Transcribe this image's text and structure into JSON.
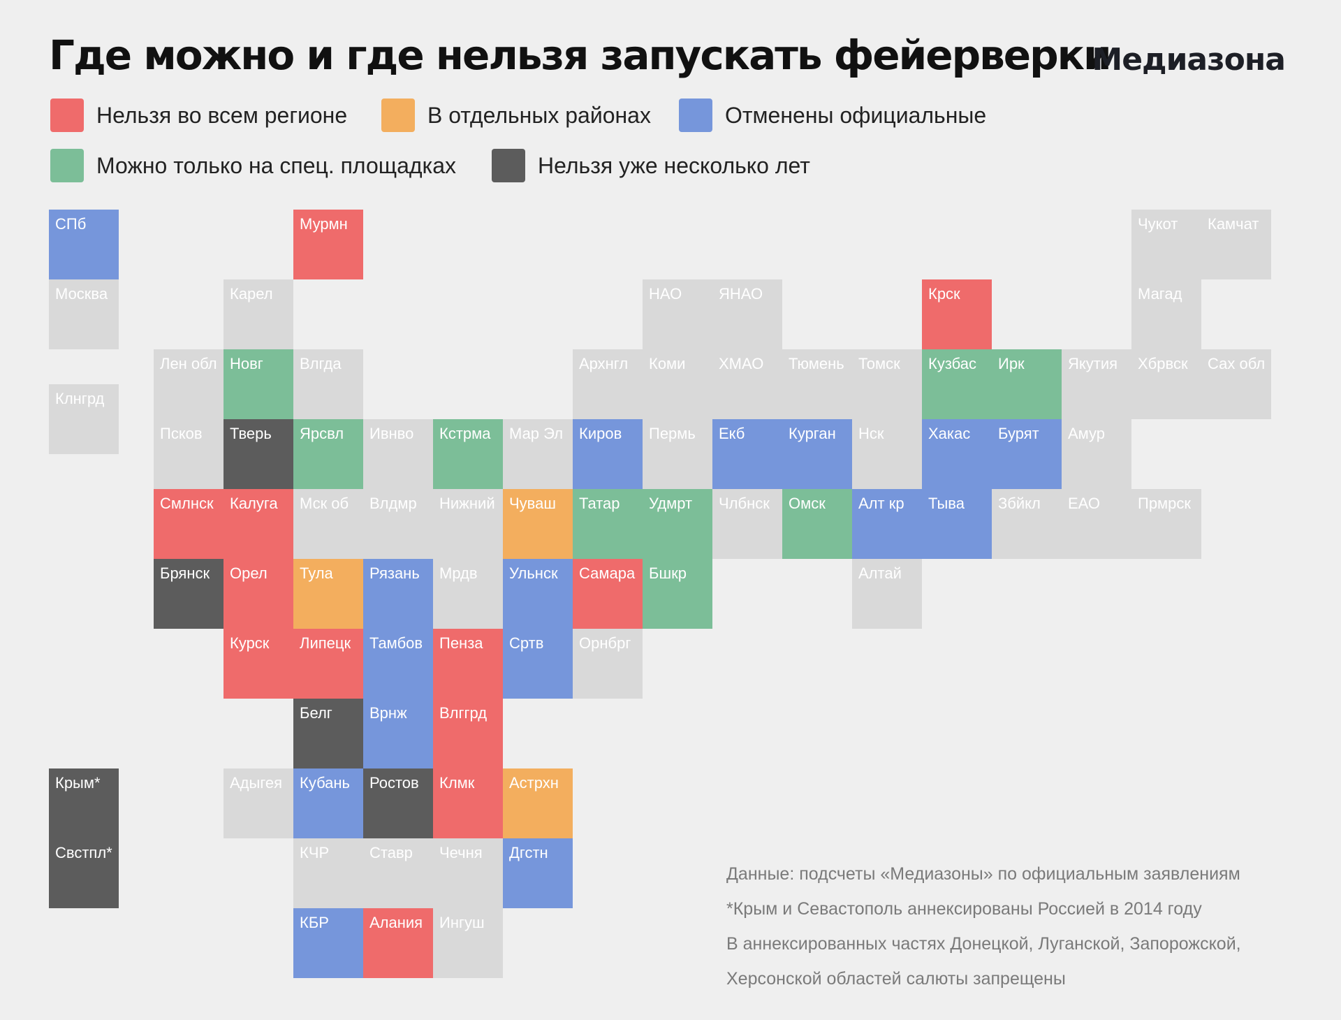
{
  "title": "Где можно и где нельзя запускать фейерверки",
  "logo": "Медиазона",
  "colors": {
    "red": "#ef6b6b",
    "orange": "#f3ae5e",
    "blue": "#7696db",
    "green": "#7cbe98",
    "dark": "#5c5c5c",
    "gray": "#d9d9d9"
  },
  "legend": [
    {
      "label": "Нельзя во всем регионе",
      "status": "red"
    },
    {
      "label": "В отдельных районах",
      "status": "orange"
    },
    {
      "label": "Отменены официальные",
      "status": "blue"
    },
    {
      "label": "Можно только на спец. площадках",
      "status": "green"
    },
    {
      "label": "Нельзя уже несколько лет",
      "status": "dark"
    }
  ],
  "regions": [
    {
      "label": "СПб",
      "col": 0,
      "row": 0,
      "status": "blue"
    },
    {
      "label": "Мурмн",
      "col": 3.5,
      "row": 0,
      "status": "red"
    },
    {
      "label": "Чукот",
      "col": 15.5,
      "row": 0,
      "status": "gray"
    },
    {
      "label": "Камчат",
      "col": 16.5,
      "row": 0,
      "status": "gray"
    },
    {
      "label": "Москва",
      "col": 0,
      "row": 1,
      "status": "gray"
    },
    {
      "label": "Карел",
      "col": 2.5,
      "row": 1,
      "status": "gray"
    },
    {
      "label": "НАО",
      "col": 8.5,
      "row": 1,
      "status": "gray"
    },
    {
      "label": "ЯНАО",
      "col": 9.5,
      "row": 1,
      "status": "gray"
    },
    {
      "label": "Крск",
      "col": 12.5,
      "row": 1,
      "status": "red"
    },
    {
      "label": "Магад",
      "col": 15.5,
      "row": 1,
      "status": "gray"
    },
    {
      "label": "Лен обл",
      "col": 1.5,
      "row": 2,
      "status": "gray"
    },
    {
      "label": "Новг",
      "col": 2.5,
      "row": 2,
      "status": "green"
    },
    {
      "label": "Влгда",
      "col": 3.5,
      "row": 2,
      "status": "gray"
    },
    {
      "label": "Архнгл",
      "col": 7.5,
      "row": 2,
      "status": "gray"
    },
    {
      "label": "Коми",
      "col": 8.5,
      "row": 2,
      "status": "gray"
    },
    {
      "label": "ХМАО",
      "col": 9.5,
      "row": 2,
      "status": "gray"
    },
    {
      "label": "Тюмень",
      "col": 10.5,
      "row": 2,
      "status": "gray"
    },
    {
      "label": "Томск",
      "col": 11.5,
      "row": 2,
      "status": "gray"
    },
    {
      "label": "Кузбас",
      "col": 12.5,
      "row": 2,
      "status": "green"
    },
    {
      "label": "Ирк",
      "col": 13.5,
      "row": 2,
      "status": "green"
    },
    {
      "label": "Якутия",
      "col": 14.5,
      "row": 2,
      "status": "gray"
    },
    {
      "label": "Хбрвск",
      "col": 15.5,
      "row": 2,
      "status": "gray"
    },
    {
      "label": "Сах обл",
      "col": 16.5,
      "row": 2,
      "status": "gray"
    },
    {
      "label": "Клнгрд",
      "col": 0,
      "row": 2.5,
      "status": "gray"
    },
    {
      "label": "Псков",
      "col": 1.5,
      "row": 3,
      "status": "gray"
    },
    {
      "label": "Тверь",
      "col": 2.5,
      "row": 3,
      "status": "dark"
    },
    {
      "label": "Ярсвл",
      "col": 3.5,
      "row": 3,
      "status": "green"
    },
    {
      "label": "Ивнво",
      "col": 4.5,
      "row": 3,
      "status": "gray"
    },
    {
      "label": "Кстрма",
      "col": 5.5,
      "row": 3,
      "status": "green"
    },
    {
      "label": "Мар Эл",
      "col": 6.5,
      "row": 3,
      "status": "gray"
    },
    {
      "label": "Киров",
      "col": 7.5,
      "row": 3,
      "status": "blue"
    },
    {
      "label": "Пермь",
      "col": 8.5,
      "row": 3,
      "status": "gray"
    },
    {
      "label": "Екб",
      "col": 9.5,
      "row": 3,
      "status": "blue"
    },
    {
      "label": "Курган",
      "col": 10.5,
      "row": 3,
      "status": "blue"
    },
    {
      "label": "Нск",
      "col": 11.5,
      "row": 3,
      "status": "gray"
    },
    {
      "label": "Хакас",
      "col": 12.5,
      "row": 3,
      "status": "blue"
    },
    {
      "label": "Бурят",
      "col": 13.5,
      "row": 3,
      "status": "blue"
    },
    {
      "label": "Амур",
      "col": 14.5,
      "row": 3,
      "status": "gray"
    },
    {
      "label": "Смлнск",
      "col": 1.5,
      "row": 4,
      "status": "red"
    },
    {
      "label": "Калуга",
      "col": 2.5,
      "row": 4,
      "status": "red"
    },
    {
      "label": "Мск об",
      "col": 3.5,
      "row": 4,
      "status": "gray"
    },
    {
      "label": "Влдмр",
      "col": 4.5,
      "row": 4,
      "status": "gray"
    },
    {
      "label": "Нижний",
      "col": 5.5,
      "row": 4,
      "status": "gray"
    },
    {
      "label": "Чуваш",
      "col": 6.5,
      "row": 4,
      "status": "orange"
    },
    {
      "label": "Татар",
      "col": 7.5,
      "row": 4,
      "status": "green"
    },
    {
      "label": "Удмрт",
      "col": 8.5,
      "row": 4,
      "status": "green"
    },
    {
      "label": "Члбнск",
      "col": 9.5,
      "row": 4,
      "status": "gray"
    },
    {
      "label": "Омск",
      "col": 10.5,
      "row": 4,
      "status": "green"
    },
    {
      "label": "Алт кр",
      "col": 11.5,
      "row": 4,
      "status": "blue"
    },
    {
      "label": "Тыва",
      "col": 12.5,
      "row": 4,
      "status": "blue"
    },
    {
      "label": "Збйкл",
      "col": 13.5,
      "row": 4,
      "status": "gray"
    },
    {
      "label": "ЕАО",
      "col": 14.5,
      "row": 4,
      "status": "gray"
    },
    {
      "label": "Прмрск",
      "col": 15.5,
      "row": 4,
      "status": "gray"
    },
    {
      "label": "Брянск",
      "col": 1.5,
      "row": 5,
      "status": "dark"
    },
    {
      "label": "Орел",
      "col": 2.5,
      "row": 5,
      "status": "red"
    },
    {
      "label": "Тула",
      "col": 3.5,
      "row": 5,
      "status": "orange"
    },
    {
      "label": "Рязань",
      "col": 4.5,
      "row": 5,
      "status": "blue"
    },
    {
      "label": "Мрдв",
      "col": 5.5,
      "row": 5,
      "status": "gray"
    },
    {
      "label": "Ульнск",
      "col": 6.5,
      "row": 5,
      "status": "blue"
    },
    {
      "label": "Самара",
      "col": 7.5,
      "row": 5,
      "status": "red"
    },
    {
      "label": "Бшкр",
      "col": 8.5,
      "row": 5,
      "status": "green"
    },
    {
      "label": "Алтай",
      "col": 11.5,
      "row": 5,
      "status": "gray"
    },
    {
      "label": "Курск",
      "col": 2.5,
      "row": 6,
      "status": "red"
    },
    {
      "label": "Липецк",
      "col": 3.5,
      "row": 6,
      "status": "red"
    },
    {
      "label": "Тамбов",
      "col": 4.5,
      "row": 6,
      "status": "blue"
    },
    {
      "label": "Пенза",
      "col": 5.5,
      "row": 6,
      "status": "red"
    },
    {
      "label": "Сртв",
      "col": 6.5,
      "row": 6,
      "status": "blue"
    },
    {
      "label": "Орнбрг",
      "col": 7.5,
      "row": 6,
      "status": "gray"
    },
    {
      "label": "Белг",
      "col": 3.5,
      "row": 7,
      "status": "dark"
    },
    {
      "label": "Врнж",
      "col": 4.5,
      "row": 7,
      "status": "blue"
    },
    {
      "label": "Влггрд",
      "col": 5.5,
      "row": 7,
      "status": "red"
    },
    {
      "label": "Крым*",
      "col": 0,
      "row": 8,
      "status": "dark"
    },
    {
      "label": "Адыгея",
      "col": 2.5,
      "row": 8,
      "status": "gray"
    },
    {
      "label": "Кубань",
      "col": 3.5,
      "row": 8,
      "status": "blue"
    },
    {
      "label": "Ростов",
      "col": 4.5,
      "row": 8,
      "status": "dark"
    },
    {
      "label": "Клмк",
      "col": 5.5,
      "row": 8,
      "status": "red"
    },
    {
      "label": "Астрхн",
      "col": 6.5,
      "row": 8,
      "status": "orange"
    },
    {
      "label": "Свстпл*",
      "col": 0,
      "row": 9,
      "status": "dark"
    },
    {
      "label": "КЧР",
      "col": 3.5,
      "row": 9,
      "status": "gray"
    },
    {
      "label": "Ставр",
      "col": 4.5,
      "row": 9,
      "status": "gray"
    },
    {
      "label": "Чечня",
      "col": 5.5,
      "row": 9,
      "status": "gray"
    },
    {
      "label": "Дгстн",
      "col": 6.5,
      "row": 9,
      "status": "blue"
    },
    {
      "label": "КБР",
      "col": 3.5,
      "row": 10,
      "status": "blue"
    },
    {
      "label": "Алания",
      "col": 4.5,
      "row": 10,
      "status": "red"
    },
    {
      "label": "Ингуш",
      "col": 5.5,
      "row": 10,
      "status": "gray"
    }
  ],
  "notes": [
    "Данные: подсчеты «Медиазоны» по официальным заявлениям",
    "*Крым и Севастополь аннексированы Россией в 2014 году",
    "В аннексированных частях Донецкой, Луганской, Запорожской,",
    "Херсонской областей салюты запрещены"
  ]
}
